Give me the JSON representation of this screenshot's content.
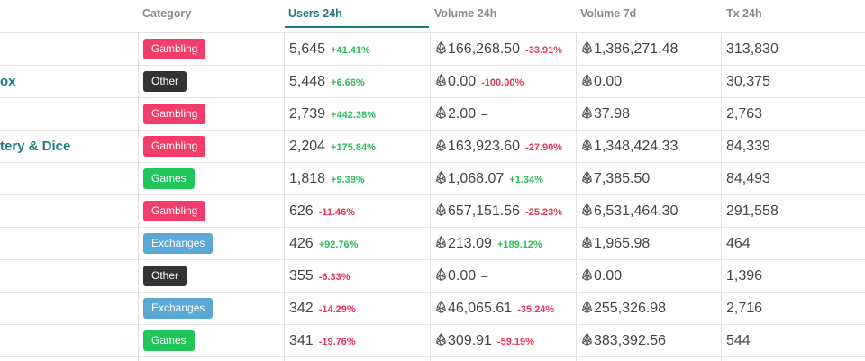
{
  "header": {
    "category": "Category",
    "users24h": "Users 24h",
    "volume24h": "Volume 24h",
    "volume7d": "Volume 7d",
    "tx24h": "Tx 24h"
  },
  "colors": {
    "accent": "#1f7a80",
    "Gambling": "#f23d6b",
    "Other": "#333333",
    "Games": "#21c65a",
    "Exchanges": "#5ba8d4",
    "positive": "#2ebd58",
    "negative": "#e8345a"
  },
  "currency_icon": "eos-icon",
  "rows": [
    {
      "name": "",
      "category": "Gambling",
      "users": "5,645",
      "users_change": "+41.41%",
      "users_dir": "pos",
      "vol24": "166,268.50",
      "vol24_change": "-33.91%",
      "vol24_dir": "neg",
      "vol7": "1,386,271.48",
      "tx": "313,830"
    },
    {
      "name": "ox",
      "category": "Other",
      "users": "5,448",
      "users_change": "+6.66%",
      "users_dir": "pos",
      "vol24": "0.00",
      "vol24_change": "-100.00%",
      "vol24_dir": "neg",
      "vol7": "0.00",
      "tx": "30,375"
    },
    {
      "name": "",
      "category": "Gambling",
      "users": "2,739",
      "users_change": "+442.38%",
      "users_dir": "pos",
      "vol24": "2.00",
      "vol24_change": "–",
      "vol24_dir": "neu",
      "vol7": "37.98",
      "tx": "2,763"
    },
    {
      "name": "tery & Dice",
      "category": "Gambling",
      "users": "2,204",
      "users_change": "+175.84%",
      "users_dir": "pos",
      "vol24": "163,923.60",
      "vol24_change": "-27.90%",
      "vol24_dir": "neg",
      "vol7": "1,348,424.33",
      "tx": "84,339"
    },
    {
      "name": "",
      "category": "Games",
      "users": "1,818",
      "users_change": "+9.39%",
      "users_dir": "pos",
      "vol24": "1,068.07",
      "vol24_change": "+1.34%",
      "vol24_dir": "pos",
      "vol7": "7,385.50",
      "tx": "84,493"
    },
    {
      "name": "",
      "category": "Gambling",
      "users": "626",
      "users_change": "-11.46%",
      "users_dir": "neg",
      "vol24": "657,151.56",
      "vol24_change": "-25.23%",
      "vol24_dir": "neg",
      "vol7": "6,531,464.30",
      "tx": "291,558"
    },
    {
      "name": "",
      "category": "Exchanges",
      "users": "426",
      "users_change": "+92.76%",
      "users_dir": "pos",
      "vol24": "213.09",
      "vol24_change": "+189.12%",
      "vol24_dir": "pos",
      "vol7": "1,965.98",
      "tx": "464"
    },
    {
      "name": "",
      "category": "Other",
      "users": "355",
      "users_change": "-6.33%",
      "users_dir": "neg",
      "vol24": "0.00",
      "vol24_change": "–",
      "vol24_dir": "neu",
      "vol7": "0.00",
      "tx": "1,396"
    },
    {
      "name": "",
      "category": "Exchanges",
      "users": "342",
      "users_change": "-14.29%",
      "users_dir": "neg",
      "vol24": "46,065.61",
      "vol24_change": "-35.24%",
      "vol24_dir": "neg",
      "vol7": "255,326.98",
      "tx": "2,716"
    },
    {
      "name": "",
      "category": "Games",
      "users": "341",
      "users_change": "-19.76%",
      "users_dir": "neg",
      "vol24": "309.91",
      "vol24_change": "-59.19%",
      "vol24_dir": "neg",
      "vol7": "383,392.56",
      "tx": "544"
    }
  ]
}
